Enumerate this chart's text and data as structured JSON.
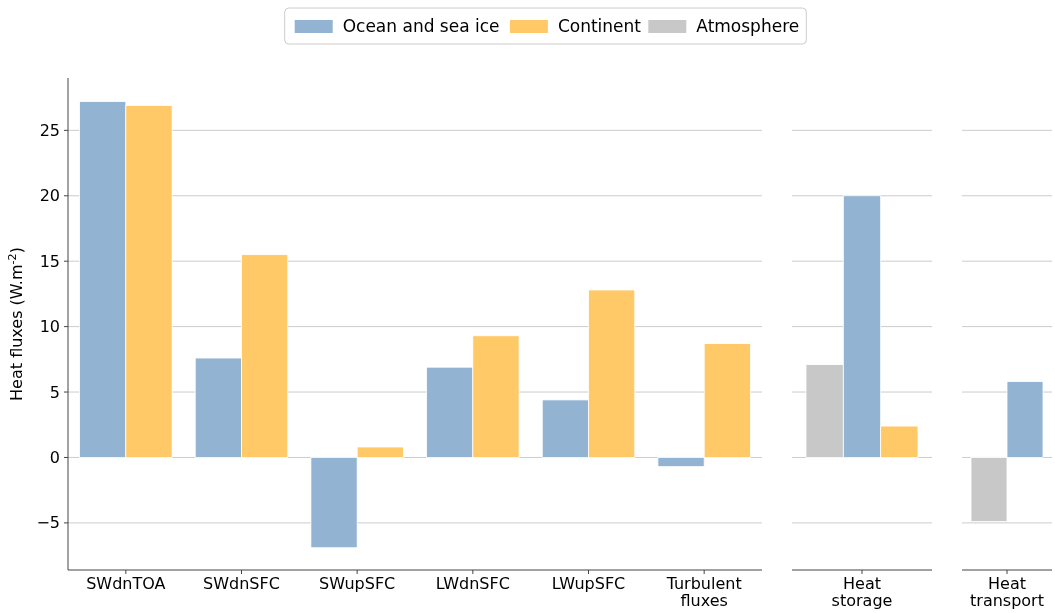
{
  "chart_data": [
    {
      "type": "bar",
      "ylabel": "Heat fluxes (W.m$^{-2}$)",
      "categories": [
        "SWdnTOA",
        "SWdnSFC",
        "SWupSFC",
        "LWdnSFC",
        "LWupSFC",
        "Turbulent fluxes"
      ],
      "series": [
        {
          "name": "Ocean and sea ice",
          "color": "#92b4d2",
          "values": [
            27.2,
            7.6,
            -6.9,
            6.9,
            4.4,
            -0.7
          ]
        },
        {
          "name": "Continent",
          "color": "#fec966",
          "values": [
            26.9,
            15.5,
            0.8,
            9.3,
            12.8,
            8.7
          ]
        }
      ],
      "ylim": [
        -8.6,
        29
      ],
      "yticks": [
        {
          "value": -5,
          "label": "−5"
        },
        0,
        5,
        10,
        15,
        20,
        25
      ],
      "grid": "y",
      "legend": "top"
    },
    {
      "type": "bar",
      "categories": [
        "Heat storage"
      ],
      "series": [
        {
          "name": "Atmosphere",
          "color": "#c8c8c8",
          "values": [
            7.1
          ]
        },
        {
          "color": "#92b4d2",
          "values": [
            20.0
          ]
        },
        {
          "color": "#fec966",
          "values": [
            2.4
          ]
        }
      ],
      "yticks": [
        -5,
        0,
        5,
        10,
        15,
        20,
        25
      ],
      "grid": "y",
      "tick_labels": "x"
    },
    {
      "type": "bar",
      "categories": [
        "Heat transport"
      ],
      "series": [
        {
          "color": "#c8c8c8",
          "values": [
            -4.9
          ]
        },
        {
          "color": "#92b4d2",
          "values": [
            5.8
          ]
        }
      ],
      "yticks": [
        -5,
        0,
        5,
        10,
        15,
        20,
        25
      ],
      "grid": "y",
      "tick_labels": "x"
    }
  ]
}
